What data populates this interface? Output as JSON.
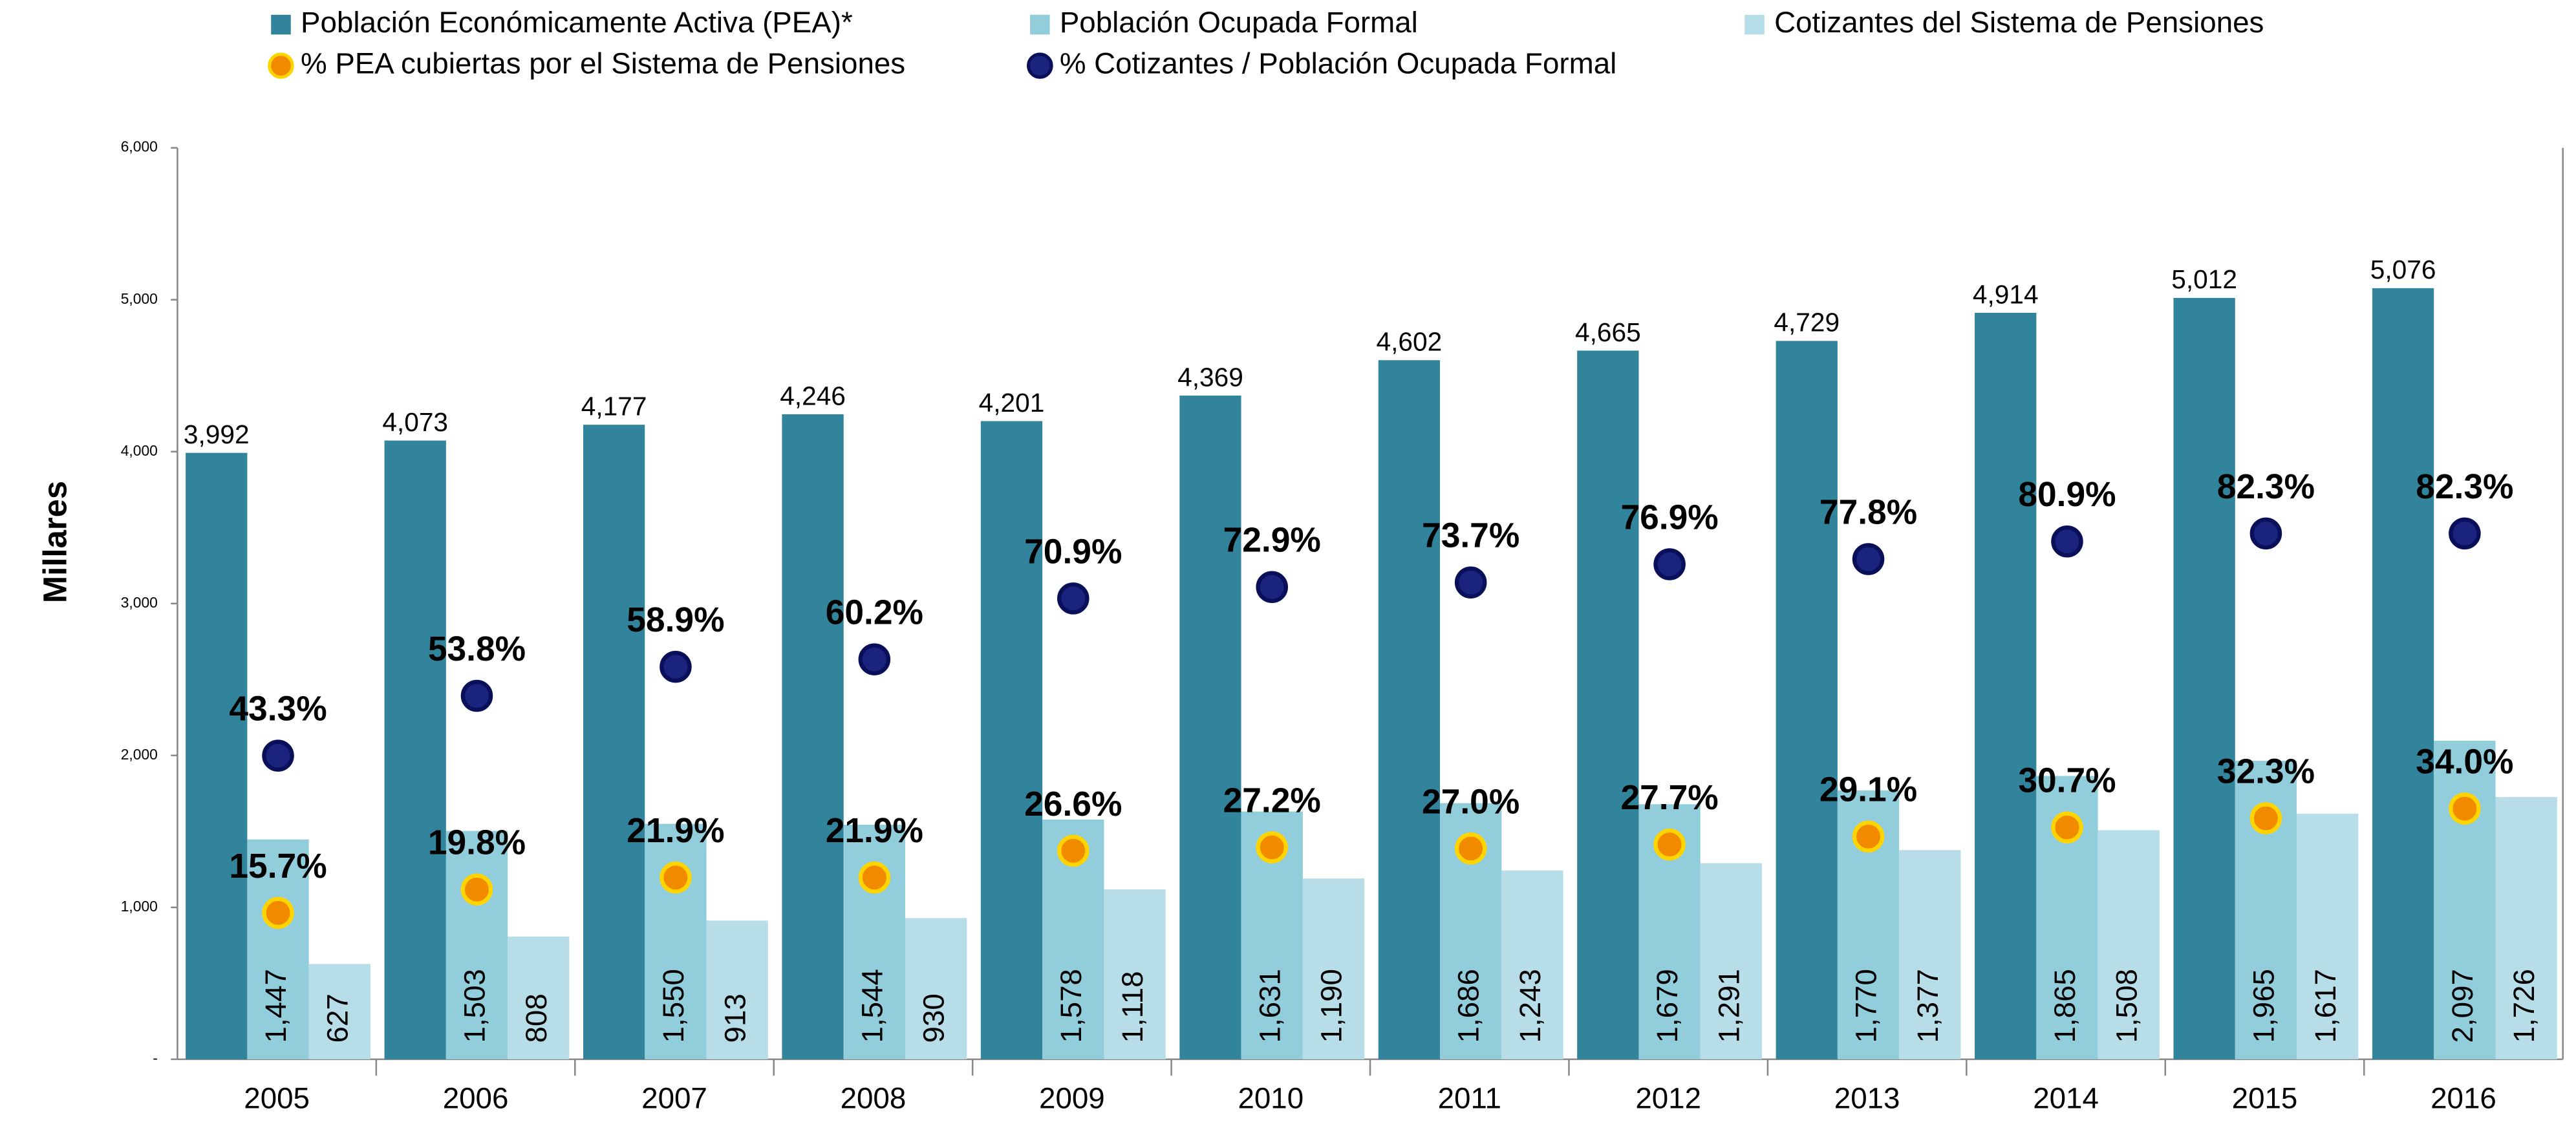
{
  "chart_data": {
    "type": "bar",
    "ylabel": "Millares",
    "categories": [
      "2005",
      "2006",
      "2007",
      "2008",
      "2009",
      "2010",
      "2011",
      "2012",
      "2013",
      "2014",
      "2015",
      "2016"
    ],
    "ylim": [
      0,
      6000
    ],
    "yticks": [
      {
        "value": 0,
        "label": "-"
      },
      {
        "value": 1000,
        "label": "1,000"
      },
      {
        "value": 2000,
        "label": "2,000"
      },
      {
        "value": 3000,
        "label": "3,000"
      },
      {
        "value": 4000,
        "label": "4,000"
      },
      {
        "value": 5000,
        "label": "5,000"
      },
      {
        "value": 6000,
        "label": "6,000"
      }
    ],
    "y2lim": [
      -10,
      150
    ],
    "series": [
      {
        "name": "Población Económicamente Activa (PEA)*",
        "color": "#31849b",
        "values": [
          3992,
          4073,
          4177,
          4246,
          4201,
          4369,
          4602,
          4665,
          4729,
          4914,
          5012,
          5076
        ],
        "value_labels": [
          "3,992",
          "4,073",
          "4,177",
          "4,246",
          "4,201",
          "4,369",
          "4,602",
          "4,665",
          "4,729",
          "4,914",
          "5,012",
          "5,076"
        ]
      },
      {
        "name": "Población Ocupada Formal",
        "color": "#92cddc",
        "values": [
          1447,
          1503,
          1550,
          1544,
          1578,
          1631,
          1686,
          1679,
          1770,
          1865,
          1965,
          2097
        ],
        "value_labels": [
          "1,447",
          "1,503",
          "1,550",
          "1,544",
          "1,578",
          "1,631",
          "1,686",
          "1,679",
          "1,770",
          "1,865",
          "1,965",
          "2,097"
        ]
      },
      {
        "name": "Cotizantes del Sistema de Pensiones",
        "color": "#b7dee8",
        "values": [
          627,
          808,
          913,
          930,
          1118,
          1190,
          1243,
          1291,
          1377,
          1508,
          1617,
          1726
        ],
        "value_labels": [
          "627",
          "808",
          "913",
          "930",
          "1,118",
          "1,190",
          "1,243",
          "1,291",
          "1,377",
          "1,508",
          "1,617",
          "1,726"
        ]
      },
      {
        "name": "% PEA cubiertas por el Sistema de Pensiones",
        "color": "#f28a00",
        "type": "scatter",
        "axis": "y2",
        "values": [
          15.7,
          19.8,
          21.9,
          21.9,
          26.6,
          27.2,
          27.0,
          27.7,
          29.1,
          30.7,
          32.3,
          34.0
        ],
        "value_labels": [
          "15.7%",
          "19.8%",
          "21.9%",
          "21.9%",
          "26.6%",
          "27.2%",
          "27.0%",
          "27.7%",
          "29.1%",
          "30.7%",
          "32.3%",
          "34.0%"
        ]
      },
      {
        "name": "% Cotizantes / Población Ocupada Formal",
        "color": "#1a237e",
        "type": "scatter",
        "axis": "y2",
        "values": [
          43.3,
          53.8,
          58.9,
          60.2,
          70.9,
          72.9,
          73.7,
          76.9,
          77.8,
          80.9,
          82.3,
          82.3
        ],
        "value_labels": [
          "43.3%",
          "53.8%",
          "58.9%",
          "60.2%",
          "70.9%",
          "72.9%",
          "73.7%",
          "76.9%",
          "77.8%",
          "80.9%",
          "82.3%",
          "82.3%"
        ]
      }
    ]
  }
}
